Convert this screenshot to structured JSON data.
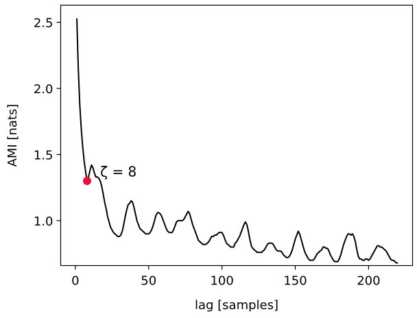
{
  "chart_data": {
    "type": "line",
    "title": "",
    "xlabel": "lag [samples]",
    "ylabel": "AMI [nats]",
    "xlim": [
      -10,
      230
    ],
    "ylim": [
      0.66,
      2.63
    ],
    "xticks": [
      0,
      50,
      100,
      150,
      200
    ],
    "yticks": [
      1.0,
      1.5,
      2.0,
      2.5
    ],
    "xtick_labels": [
      "0",
      "50",
      "100",
      "150",
      "200"
    ],
    "ytick_labels": [
      "1.0",
      "1.5",
      "2.0",
      "2.5"
    ],
    "grid": false,
    "legend": "none",
    "colors": {
      "line": "#000000",
      "marker": "#e0143c"
    },
    "series": [
      {
        "x": [
          1,
          2,
          3,
          4,
          5,
          6,
          7,
          8,
          9,
          10,
          11,
          12,
          13,
          14,
          15,
          16,
          17,
          18,
          19,
          20,
          21,
          22,
          23,
          24,
          25,
          26,
          27,
          28,
          29,
          30,
          31,
          32,
          33,
          34,
          35,
          36,
          37,
          38,
          39,
          40,
          41,
          42,
          43,
          44,
          45,
          46,
          47,
          48,
          49,
          50,
          51,
          52,
          53,
          54,
          55,
          56,
          57,
          58,
          59,
          60,
          61,
          62,
          63,
          64,
          65,
          66,
          67,
          68,
          69,
          70,
          71,
          72,
          73,
          74,
          75,
          76,
          77,
          78,
          79,
          80,
          81,
          82,
          83,
          84,
          85,
          86,
          87,
          88,
          89,
          90,
          91,
          92,
          93,
          94,
          95,
          96,
          97,
          98,
          99,
          100,
          101,
          102,
          103,
          104,
          105,
          106,
          107,
          108,
          109,
          110,
          111,
          112,
          113,
          114,
          115,
          116,
          117,
          118,
          119,
          120,
          121,
          122,
          123,
          124,
          125,
          126,
          127,
          128,
          129,
          130,
          131,
          132,
          133,
          134,
          135,
          136,
          137,
          138,
          139,
          140,
          141,
          142,
          143,
          144,
          145,
          146,
          147,
          148,
          149,
          150,
          151,
          152,
          153,
          154,
          155,
          156,
          157,
          158,
          159,
          160,
          161,
          162,
          163,
          164,
          165,
          166,
          167,
          168,
          169,
          170,
          171,
          172,
          173,
          174,
          175,
          176,
          177,
          178,
          179,
          180,
          181,
          182,
          183,
          184,
          185,
          186,
          187,
          188,
          189,
          190,
          191,
          192,
          193,
          194,
          195,
          196,
          197,
          198,
          199,
          200,
          201,
          202,
          203,
          204,
          205,
          206,
          207,
          208,
          209,
          210,
          211,
          212,
          213,
          214,
          215,
          216,
          217,
          218,
          219,
          220
        ],
        "values": [
          2.53,
          2.15,
          1.88,
          1.7,
          1.56,
          1.45,
          1.37,
          1.3,
          1.33,
          1.38,
          1.42,
          1.4,
          1.36,
          1.33,
          1.33,
          1.32,
          1.3,
          1.26,
          1.2,
          1.14,
          1.09,
          1.03,
          0.99,
          0.95,
          0.93,
          0.91,
          0.9,
          0.89,
          0.88,
          0.88,
          0.89,
          0.92,
          0.97,
          1.03,
          1.08,
          1.12,
          1.13,
          1.15,
          1.14,
          1.1,
          1.05,
          1.0,
          0.97,
          0.94,
          0.93,
          0.92,
          0.91,
          0.9,
          0.9,
          0.9,
          0.91,
          0.93,
          0.96,
          1.0,
          1.04,
          1.06,
          1.06,
          1.05,
          1.03,
          1.0,
          0.97,
          0.94,
          0.92,
          0.91,
          0.91,
          0.91,
          0.93,
          0.96,
          0.99,
          1.0,
          1.0,
          1.0,
          1.0,
          1.01,
          1.03,
          1.05,
          1.07,
          1.05,
          1.01,
          0.97,
          0.94,
          0.91,
          0.88,
          0.85,
          0.84,
          0.83,
          0.82,
          0.82,
          0.82,
          0.83,
          0.84,
          0.86,
          0.88,
          0.88,
          0.89,
          0.89,
          0.9,
          0.91,
          0.91,
          0.91,
          0.89,
          0.86,
          0.83,
          0.82,
          0.81,
          0.8,
          0.8,
          0.8,
          0.83,
          0.84,
          0.86,
          0.88,
          0.91,
          0.94,
          0.97,
          0.99,
          0.97,
          0.92,
          0.86,
          0.81,
          0.79,
          0.78,
          0.77,
          0.76,
          0.76,
          0.76,
          0.76,
          0.77,
          0.78,
          0.8,
          0.82,
          0.83,
          0.83,
          0.83,
          0.82,
          0.8,
          0.78,
          0.77,
          0.77,
          0.77,
          0.76,
          0.74,
          0.73,
          0.72,
          0.72,
          0.73,
          0.75,
          0.78,
          0.82,
          0.86,
          0.89,
          0.92,
          0.9,
          0.86,
          0.82,
          0.78,
          0.75,
          0.73,
          0.71,
          0.7,
          0.7,
          0.7,
          0.71,
          0.73,
          0.75,
          0.76,
          0.77,
          0.78,
          0.8,
          0.8,
          0.79,
          0.79,
          0.77,
          0.74,
          0.72,
          0.7,
          0.69,
          0.69,
          0.69,
          0.71,
          0.74,
          0.78,
          0.82,
          0.85,
          0.88,
          0.9,
          0.9,
          0.89,
          0.9,
          0.88,
          0.84,
          0.78,
          0.73,
          0.71,
          0.71,
          0.7,
          0.7,
          0.71,
          0.71,
          0.7,
          0.71,
          0.73,
          0.75,
          0.77,
          0.79,
          0.81,
          0.81,
          0.8,
          0.8,
          0.79,
          0.78,
          0.77,
          0.75,
          0.73,
          0.71,
          0.7,
          0.7,
          0.69,
          0.68,
          0.68
        ]
      }
    ],
    "marker": {
      "x": 8,
      "y": 1.3
    },
    "annotations": [
      {
        "text": "ζ = 8",
        "x": 17,
        "y": 1.37
      }
    ]
  }
}
